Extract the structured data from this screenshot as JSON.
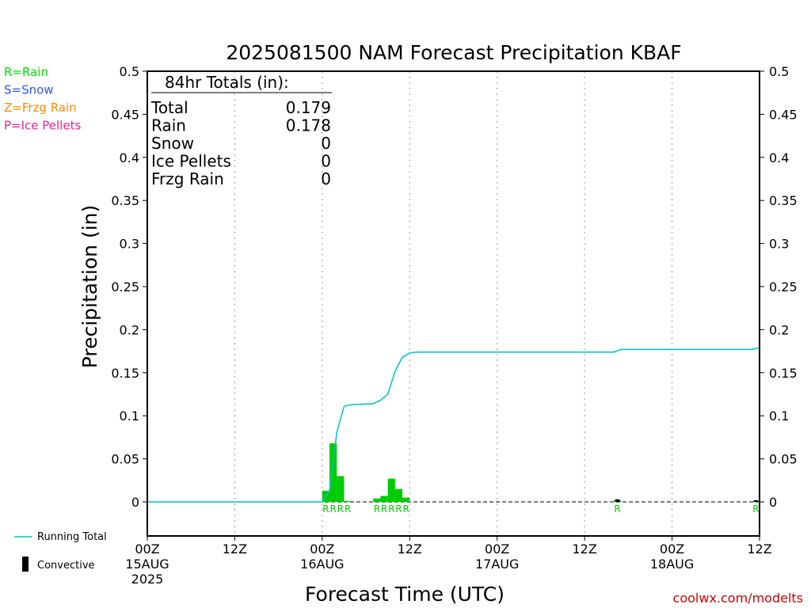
{
  "chart_data": {
    "type": "bar",
    "title": "2025081500 NAM Forecast Precipitation KBAF",
    "xlabel": "Forecast Time (UTC)",
    "ylabel": "Precipitation (in)",
    "x_range_hours": [
      0,
      84
    ],
    "ylim": [
      -0.04,
      0.5
    ],
    "y_ticks": [
      "0.5",
      "0.45",
      "0.4",
      "0.35",
      "0.3",
      "0.25",
      "0.2",
      "0.15",
      "0.1",
      "0.05",
      "0"
    ],
    "x_ticks": [
      {
        "hour": 0,
        "lines": [
          "00Z",
          "15AUG",
          "2025"
        ]
      },
      {
        "hour": 12,
        "lines": [
          "12Z"
        ]
      },
      {
        "hour": 24,
        "lines": [
          "00Z",
          "16AUG"
        ]
      },
      {
        "hour": 36,
        "lines": [
          "12Z"
        ]
      },
      {
        "hour": 48,
        "lines": [
          "00Z",
          "17AUG"
        ]
      },
      {
        "hour": 60,
        "lines": [
          "12Z"
        ]
      },
      {
        "hour": 72,
        "lines": [
          "00Z",
          "18AUG"
        ]
      },
      {
        "hour": 84,
        "lines": [
          "12Z"
        ]
      }
    ],
    "grid": "vertical dotted at 12-hour intervals",
    "series": [
      {
        "name": "Rain",
        "kind": "bar",
        "color": "#00cc00",
        "points": [
          {
            "hour": 25,
            "value": 0.013
          },
          {
            "hour": 26,
            "value": 0.068
          },
          {
            "hour": 27,
            "value": 0.03
          },
          {
            "hour": 28,
            "value": 0.001
          },
          {
            "hour": 32,
            "value": 0.004
          },
          {
            "hour": 33,
            "value": 0.007
          },
          {
            "hour": 34,
            "value": 0.027
          },
          {
            "hour": 35,
            "value": 0.015
          },
          {
            "hour": 36,
            "value": 0.005
          },
          {
            "hour": 65,
            "value": 0.002
          },
          {
            "hour": 84,
            "value": 0.001
          }
        ]
      },
      {
        "name": "Convective",
        "kind": "bar",
        "color": "#000000",
        "points": [
          {
            "hour": 65,
            "value": 0.003
          },
          {
            "hour": 84,
            "value": 0.002
          }
        ]
      },
      {
        "name": "Running Total",
        "kind": "line",
        "color": "#00c0c0",
        "points": [
          {
            "hour": 0,
            "value": 0
          },
          {
            "hour": 24,
            "value": 0
          },
          {
            "hour": 25,
            "value": 0.013
          },
          {
            "hour": 26,
            "value": 0.081
          },
          {
            "hour": 27,
            "value": 0.111
          },
          {
            "hour": 28,
            "value": 0.113
          },
          {
            "hour": 31,
            "value": 0.114
          },
          {
            "hour": 32,
            "value": 0.118
          },
          {
            "hour": 33,
            "value": 0.125
          },
          {
            "hour": 34,
            "value": 0.152
          },
          {
            "hour": 35,
            "value": 0.168
          },
          {
            "hour": 36,
            "value": 0.173
          },
          {
            "hour": 37,
            "value": 0.174
          },
          {
            "hour": 64,
            "value": 0.174
          },
          {
            "hour": 65,
            "value": 0.177
          },
          {
            "hour": 83,
            "value": 0.177
          },
          {
            "hour": 84,
            "value": 0.179
          }
        ]
      }
    ],
    "ptype_labels": [
      {
        "hour": 25,
        "text": "R"
      },
      {
        "hour": 26,
        "text": "R"
      },
      {
        "hour": 27,
        "text": "R"
      },
      {
        "hour": 28,
        "text": "R"
      },
      {
        "hour": 32,
        "text": "R"
      },
      {
        "hour": 33,
        "text": "R"
      },
      {
        "hour": 34,
        "text": "R"
      },
      {
        "hour": 35,
        "text": "R"
      },
      {
        "hour": 36,
        "text": "R"
      },
      {
        "hour": 65,
        "text": "R"
      },
      {
        "hour": 84,
        "text": "R"
      }
    ]
  },
  "totals_box": {
    "heading": "84hr Totals (in):",
    "rows": [
      {
        "label": "Total",
        "value": "0.179"
      },
      {
        "label": "Rain",
        "value": "0.178"
      },
      {
        "label": "Snow",
        "value": "0"
      },
      {
        "label": "Ice Pellets",
        "value": "0"
      },
      {
        "label": "Frzg Rain",
        "value": "0"
      }
    ]
  },
  "type_legend": [
    {
      "text": "R=Rain",
      "color": "#00dd00"
    },
    {
      "text": "S=Snow",
      "color": "#3355ee"
    },
    {
      "text": "Z=Frzg Rain",
      "color": "#ff8800"
    },
    {
      "text": "P=Ice Pellets",
      "color": "#ee2299"
    }
  ],
  "bottom_legend": {
    "running_total": "Running Total",
    "convective": "Convective"
  },
  "credit": "coolwx.com/modelts"
}
